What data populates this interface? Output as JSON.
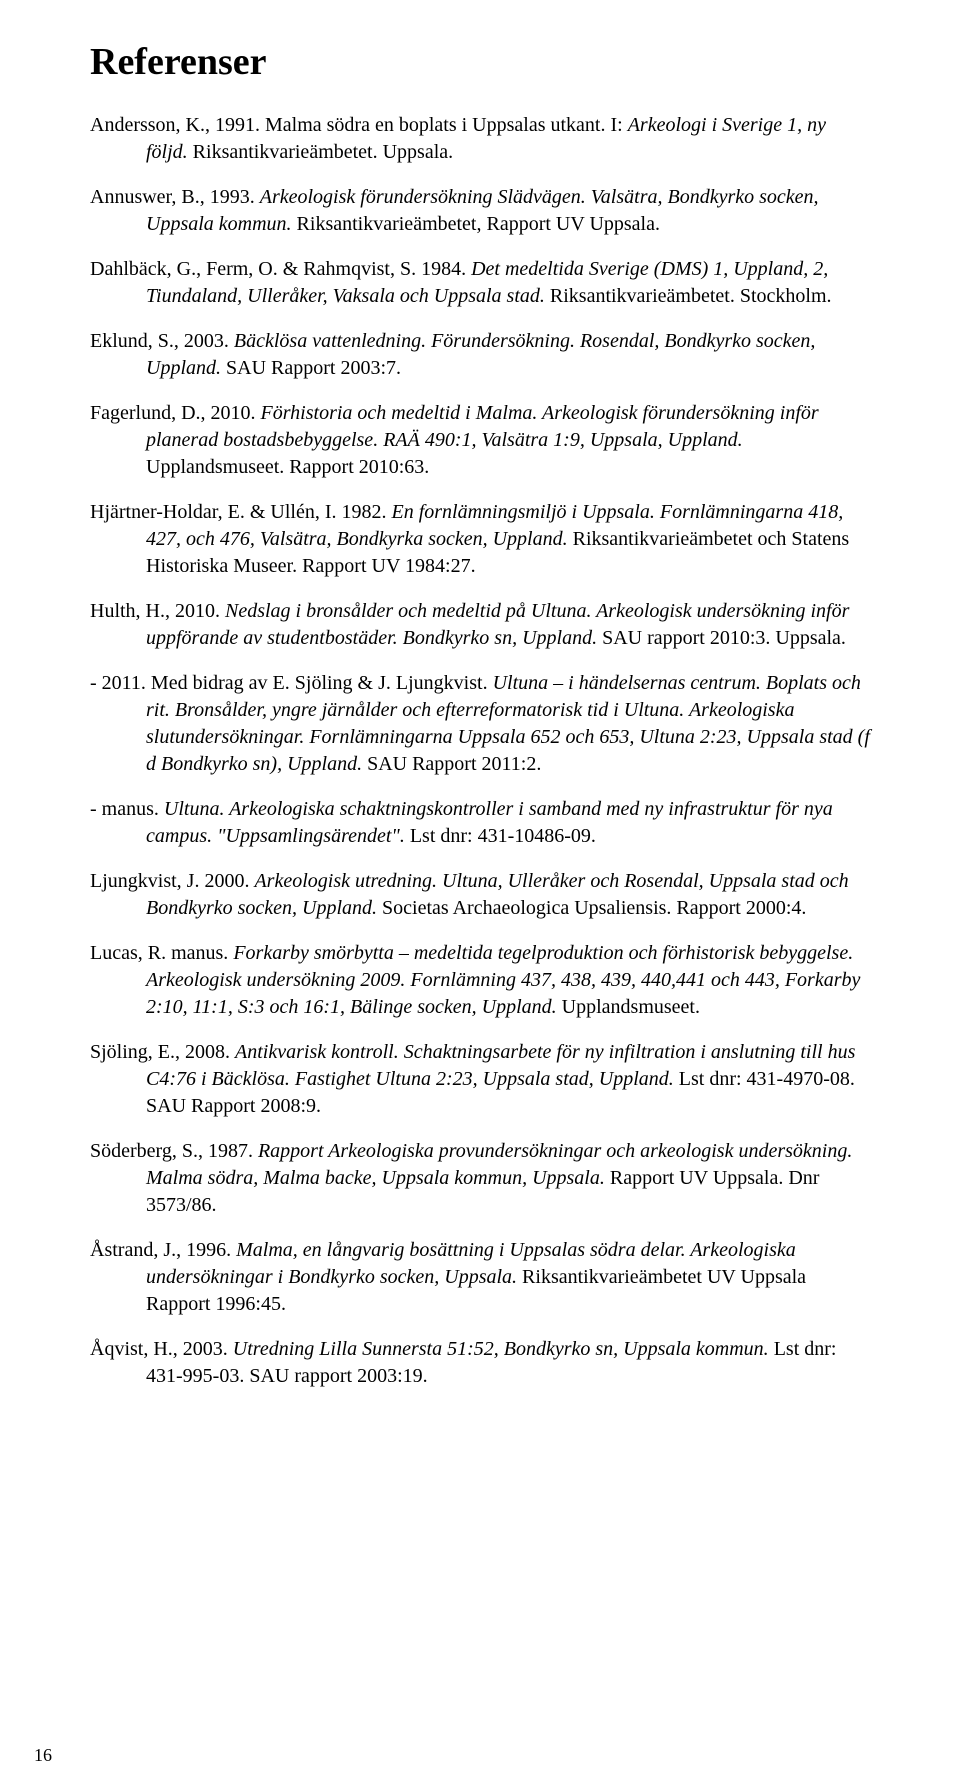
{
  "page": {
    "title": "Referenser",
    "page_number": "16",
    "text_color": "#000000",
    "background_color": "#ffffff",
    "title_fontsize": 38,
    "body_fontsize": 20,
    "references": [
      {
        "t1": "Andersson, K., 1991. Malma södra en boplats i Uppsalas utkant. I: ",
        "i1": "Arkeologi i Sverige 1, ny följd.",
        "t2": " Riksantikvarieämbetet. Uppsala."
      },
      {
        "t1": "Annuswer, B., 1993. ",
        "i1": "Arkeologisk förundersökning Slädvägen. Valsätra, Bondkyrko socken, Uppsala kommun.",
        "t2": " Riksantikvarieämbetet, Rapport UV Uppsala."
      },
      {
        "t1": "Dahlbäck, G., Ferm, O. & Rahmqvist, S. 1984. ",
        "i1": "Det medeltida Sverige (DMS) 1, Uppland, 2, Tiundaland, Ulleråker, Vaksala och Uppsala stad.",
        "t2": " Riksantikvarieämbetet. Stockholm."
      },
      {
        "t1": "Eklund, S., 2003. ",
        "i1": "Bäcklösa vattenledning. Förundersökning. Rosendal, Bondkyrko socken, Uppland.",
        "t2": " SAU Rapport 2003:7."
      },
      {
        "t1": "Fagerlund, D., 2010. ",
        "i1": "Förhistoria och medeltid i Malma. Arkeologisk förundersökning inför planerad bostadsbebyggelse. RAÄ 490:1, Valsätra 1:9, Uppsala, Uppland.",
        "t2": " Upplandsmuseet. Rapport 2010:63."
      },
      {
        "t1": "Hjärtner-Holdar, E. & Ullén, I. 1982. ",
        "i1": "En fornlämningsmiljö i Uppsala. Fornlämningarna 418, 427, och 476, Valsätra, Bondkyrka socken, Uppland.",
        "t2": " Riksantikvarieämbetet och Statens Historiska Museer. Rapport UV 1984:27."
      },
      {
        "t1": "Hulth, H., 2010. ",
        "i1": "Nedslag i bronsålder och medeltid på Ultuna. Arkeologisk undersökning inför uppförande av studentbostäder. Bondkyrko sn, Uppland.",
        "t2": " SAU rapport 2010:3. Uppsala."
      },
      {
        "t1": "- 2011. Med bidrag av E. Sjöling & J. Ljungkvist. ",
        "i1": "Ultuna – i händelsernas centrum. Boplats och rit. Bronsålder, yngre järnålder och efterreformatorisk tid i Ultuna. Arkeologiska slutundersökningar. Fornlämningarna Uppsala 652 och 653, Ultuna 2:23, Uppsala stad (f d Bondkyrko sn), Uppland.",
        "t2": " SAU Rapport 2011:2."
      },
      {
        "t1": "- manus. ",
        "i1": "Ultuna. Arkeologiska schaktningskontroller i samband med ny infrastruktur för nya campus. \"Uppsamlingsärendet\".",
        "t2": " Lst dnr: 431-10486-09."
      },
      {
        "t1": "Ljungkvist, J. 2000. ",
        "i1": "Arkeologisk utredning. Ultuna, Ulleråker och Rosendal, Uppsala stad och Bondkyrko socken, Uppland.",
        "t2": " Societas Archaeologica Upsaliensis. Rapport 2000:4."
      },
      {
        "t1": "Lucas, R. manus. ",
        "i1": "Forkarby smörbytta – medeltida tegelproduktion och förhistorisk bebyggelse. Arkeologisk undersökning 2009. Fornlämning 437, 438, 439, 440,441 och 443, Forkarby 2:10, 11:1, S:3 och 16:1, Bälinge socken, Uppland.",
        "t2": " Upplandsmuseet."
      },
      {
        "t1": "Sjöling, E., 2008. ",
        "i1": "Antikvarisk kontroll. Schaktningsarbete för ny infiltration i anslutning till hus C4:76 i Bäcklösa. Fastighet Ultuna 2:23, Uppsala stad, Uppland.",
        "t2": " Lst dnr: 431-4970-08. SAU Rapport 2008:9."
      },
      {
        "t1": "Söderberg, S., 1987. ",
        "i1": "Rapport Arkeologiska provundersökningar och arkeologisk undersökning. Malma södra, Malma backe, Uppsala kommun, Uppsala.",
        "t2": " Rapport UV Uppsala. Dnr 3573/86."
      },
      {
        "t1": "Åstrand, J., 1996. ",
        "i1": "Malma, en långvarig bosättning i Uppsalas södra delar. Arkeologiska undersökningar i Bondkyrko socken, Uppsala.",
        "t2": " Riksantikvarieämbetet UV Uppsala Rapport 1996:45."
      },
      {
        "t1": "Åqvist, H., 2003. ",
        "i1": "Utredning Lilla Sunnersta 51:52, Bondkyrko sn, Uppsala kommun.",
        "t2": " Lst dnr: 431-995-03. SAU rapport 2003:19."
      }
    ]
  }
}
